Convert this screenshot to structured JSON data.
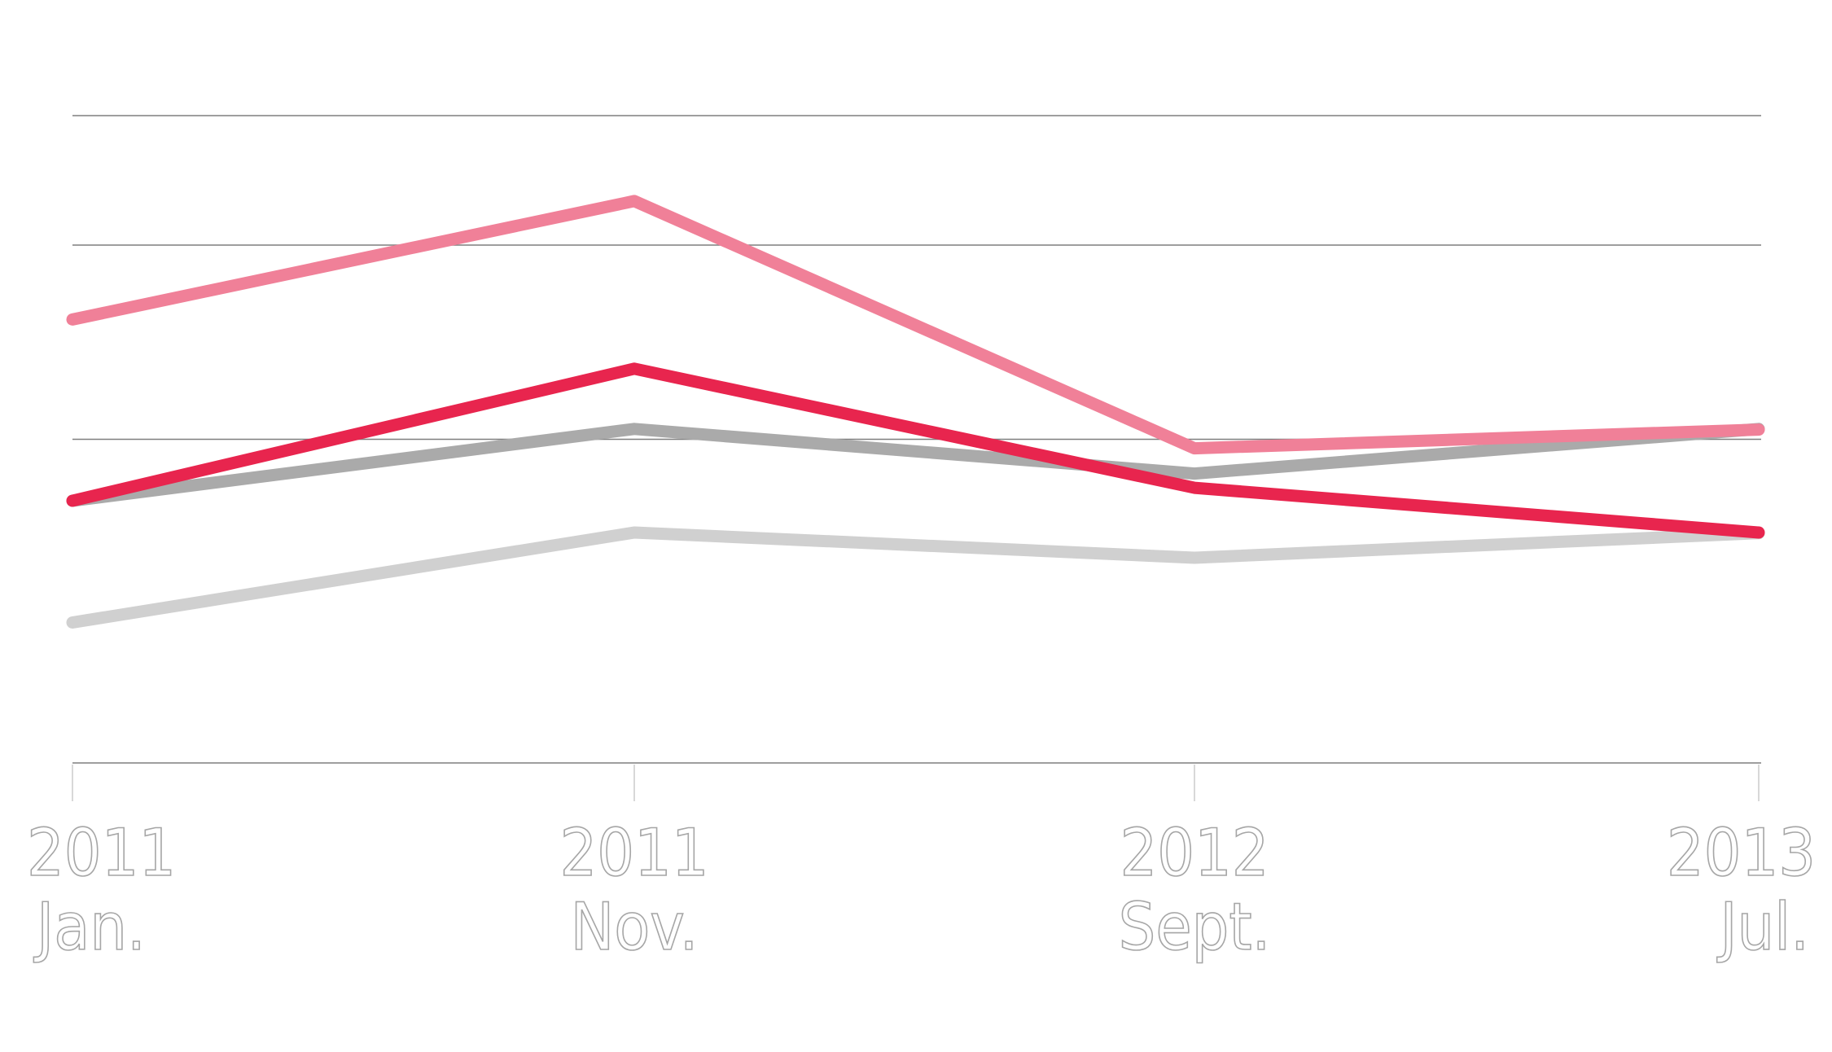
{
  "chart_data": {
    "type": "line",
    "title": "",
    "xlabel": "",
    "ylabel": "",
    "x": [
      {
        "year": "2011",
        "month": "Jan."
      },
      {
        "year": "2011",
        "month": "Nov."
      },
      {
        "year": "2012",
        "month": "Sept."
      },
      {
        "year": "2013",
        "month": "Jul."
      }
    ],
    "ylim": [
      0,
      100
    ],
    "gridlines_y": [
      0,
      50,
      80,
      100
    ],
    "y_tick_labels_shown": false,
    "grid": true,
    "legend": "none",
    "series": [
      {
        "color": "#f08098",
        "values": [
          68.5,
          86.8,
          48.6,
          51.5
        ]
      },
      {
        "color": "#e8254e",
        "values": [
          40.5,
          60.9,
          42.5,
          35.6
        ]
      },
      {
        "color": "#aaaaaa",
        "values": [
          40.5,
          51.6,
          44.7,
          51.6
        ]
      },
      {
        "color": "#d0d0d0",
        "values": [
          21.7,
          35.6,
          31.7,
          35.5
        ]
      }
    ]
  }
}
